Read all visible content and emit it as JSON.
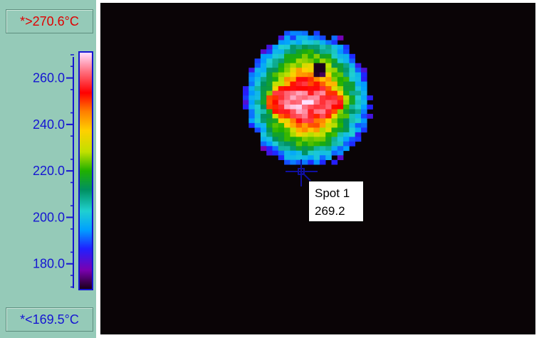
{
  "scale": {
    "max_label": "*>270.6°C",
    "min_label": "*<169.5°C",
    "ticks": [
      "260.0",
      "240.0",
      "220.0",
      "200.0",
      "180.0"
    ],
    "tick_values": [
      260,
      240,
      220,
      200,
      180
    ],
    "range": [
      169.5,
      270.6
    ],
    "palette": [
      "#1a001a",
      "#7a00b0",
      "#2020ff",
      "#00a0ff",
      "#20d0d0",
      "#009060",
      "#20b000",
      "#c0e000",
      "#ffd000",
      "#ff8000",
      "#ff0000",
      "#ff7080",
      "#ffe0ff"
    ]
  },
  "spot": {
    "name": "Spot 1",
    "value": "269.2"
  },
  "colors": {
    "panel": "#95cab8",
    "max_text": "#e00000",
    "min_text": "#1515d2",
    "background": "#0a0406",
    "spot_marker": "#1010a0"
  }
}
